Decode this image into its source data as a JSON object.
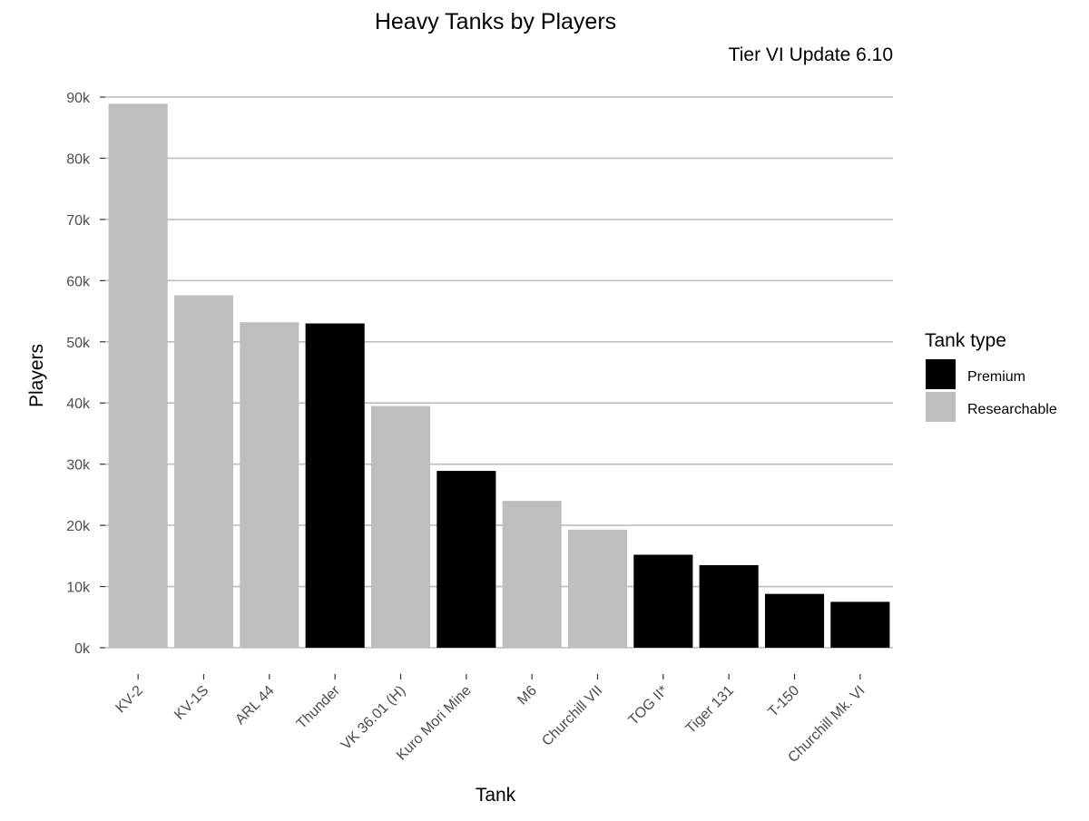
{
  "chart_data": {
    "type": "bar",
    "title": "Heavy Tanks by Players",
    "subtitle": "Tier VI Update 6.10",
    "xlabel": "Tank",
    "ylabel": "Players",
    "ylim": [
      0,
      90000
    ],
    "y_ticks": [
      0,
      10000,
      20000,
      30000,
      40000,
      50000,
      60000,
      70000,
      80000,
      90000
    ],
    "y_tick_labels": [
      "0k",
      "10k",
      "20k",
      "30k",
      "40k",
      "50k",
      "60k",
      "70k",
      "80k",
      "90k"
    ],
    "grid": true,
    "legend": {
      "title": "Tank type",
      "position": "right",
      "entries": [
        {
          "label": "Premium",
          "color": "#000000"
        },
        {
          "label": "Researchable",
          "color": "#bebebe"
        }
      ]
    },
    "categories": [
      "KV-2",
      "KV-1S",
      "ARL 44",
      "Thunder",
      "VK 36.01 (H)",
      "Kuro Mori Mine",
      "M6",
      "Churchill VII",
      "TOG II*",
      "Tiger 131",
      "T-150",
      "Churchill Mk. VI"
    ],
    "values": [
      88900,
      57600,
      53200,
      53000,
      39500,
      28900,
      24000,
      19300,
      15200,
      13500,
      8800,
      7500
    ],
    "tank_type": [
      "Researchable",
      "Researchable",
      "Researchable",
      "Premium",
      "Researchable",
      "Premium",
      "Researchable",
      "Researchable",
      "Premium",
      "Premium",
      "Premium",
      "Premium"
    ]
  }
}
